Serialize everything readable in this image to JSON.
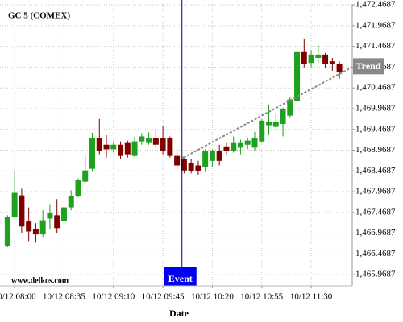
{
  "chart_data": {
    "type": "candlestick",
    "title": "GC 5 (COMEX)",
    "watermark": "www.delkos.com",
    "x_label": "Date",
    "categories": [
      null,
      "10/12 08:00",
      null,
      null,
      null,
      null,
      null,
      null,
      "10/12 08:35",
      null,
      null,
      null,
      null,
      null,
      null,
      "10/12 09:10",
      null,
      null,
      null,
      null,
      null,
      null,
      "10/12 09:45",
      null,
      null,
      null,
      null,
      null,
      null,
      "10/12 10:20",
      null,
      null,
      null,
      null,
      null,
      null,
      "10/12 10:55",
      null,
      null,
      null,
      null,
      null,
      null,
      "10/12 11:30",
      null,
      null,
      null,
      null
    ],
    "series": [
      {
        "up_color": "#1fa01f",
        "down_color": "#800000",
        "open": [
          1466.666,
          1467.36,
          1467.88,
          1467.25,
          1467.07,
          1466.94,
          1467.32,
          1467.4,
          1467.27,
          1467.59,
          1467.86,
          1468.21,
          1468.52,
          1469.26,
          1469.1,
          1468.99,
          1469.1,
          1469.14,
          1468.83,
          1469.18,
          1469.14,
          1469.26,
          1469.26,
          1469.26,
          1468.83,
          1468.75,
          1468.66,
          1468.6,
          1468.56,
          1468.71,
          1468.95,
          1469.06,
          1468.95,
          1469.03,
          1469.1,
          1469.03,
          1469.18,
          1469.57,
          1469.53,
          1469.6,
          1469.8,
          1470.15,
          1471.35,
          1471.07,
          1471.19,
          1471.27,
          1471.11,
          1471.04
        ],
        "high": [
          1467.4,
          1468.48,
          1468.04,
          1467.59,
          1467.21,
          1467.52,
          1467.65,
          1467.79,
          1467.75,
          1468.0,
          1468.29,
          1468.87,
          1469.39,
          1469.72,
          1469.33,
          1469.18,
          1469.18,
          1469.2,
          1469.3,
          1469.38,
          1469.4,
          1469.45,
          1469.55,
          1469.3,
          1469.0,
          1468.81,
          1468.75,
          1468.71,
          1468.99,
          1468.99,
          1469.1,
          1469.14,
          1469.3,
          1469.22,
          1469.26,
          1469.41,
          1469.72,
          1470.07,
          1469.84,
          1469.99,
          1470.26,
          1471.43,
          1471.66,
          1471.38,
          1471.5,
          1471.31,
          1471.19,
          1471.11
        ],
        "low": [
          1466.63,
          1467.32,
          1466.98,
          1466.78,
          1466.74,
          1466.86,
          1467.07,
          1466.98,
          1467.17,
          1467.52,
          1467.83,
          1468.17,
          1468.45,
          1468.87,
          1468.79,
          1468.91,
          1468.75,
          1468.79,
          1468.79,
          1469.1,
          1469.1,
          1469.03,
          1468.87,
          1468.79,
          1468.48,
          1468.41,
          1468.41,
          1468.37,
          1468.44,
          1468.56,
          1468.6,
          1468.87,
          1468.91,
          1468.87,
          1468.99,
          1468.95,
          1469.14,
          1469.33,
          1469.45,
          1469.3,
          1469.76,
          1470.07,
          1470.96,
          1470.96,
          1471.07,
          1470.96,
          1470.88,
          1470.69
        ],
        "close": [
          1467.36,
          1467.94,
          1467.13,
          1467.01,
          1466.94,
          1467.28,
          1467.46,
          1467.09,
          1467.59,
          1467.86,
          1468.25,
          1468.48,
          1469.26,
          1468.95,
          1468.99,
          1469.1,
          1468.83,
          1468.87,
          1469.18,
          1469.3,
          1469.26,
          1469.1,
          1468.95,
          1468.83,
          1468.6,
          1468.48,
          1468.46,
          1468.46,
          1468.95,
          1468.95,
          1468.71,
          1468.95,
          1469.14,
          1469.14,
          1469.2,
          1469.26,
          1469.68,
          1469.64,
          1469.64,
          1469.95,
          1470.19,
          1471.35,
          1471.04,
          1471.27,
          1471.27,
          1471.04,
          1471.04,
          1470.84
        ]
      }
    ],
    "event": {
      "label": "Event",
      "color": "#0000ee"
    },
    "trend": {
      "label": "Trend",
      "values": [
        1468.79,
        1470.97
      ],
      "color": "#888888"
    },
    "ylim": [
      1465.7,
      1472.49
    ],
    "yticks": [
      {
        "value": 1465.9687,
        "label": "1,465.9687"
      },
      {
        "value": 1466.4687,
        "label": "1,466.4687"
      },
      {
        "value": 1466.9687,
        "label": "1,466.9687"
      },
      {
        "value": 1467.4687,
        "label": "1,467.4687"
      },
      {
        "value": 1467.9687,
        "label": "1,467.9687"
      },
      {
        "value": 1468.4687,
        "label": "1,468.4687"
      },
      {
        "value": 1468.9687,
        "label": "1,468.9687"
      },
      {
        "value": 1469.4687,
        "label": "1,469.4687"
      },
      {
        "value": 1469.9687,
        "label": "1,469.9687"
      },
      {
        "value": 1470.4687,
        "label": "1,470.4687"
      },
      {
        "value": 1470.9687,
        "label": "1,470.9687"
      },
      {
        "value": 1471.4687,
        "label": "1,471.4687"
      },
      {
        "value": 1471.9687,
        "label": "1,471.9687"
      },
      {
        "value": 1472.4687,
        "label": "1,472.4687"
      }
    ],
    "grid": true
  }
}
